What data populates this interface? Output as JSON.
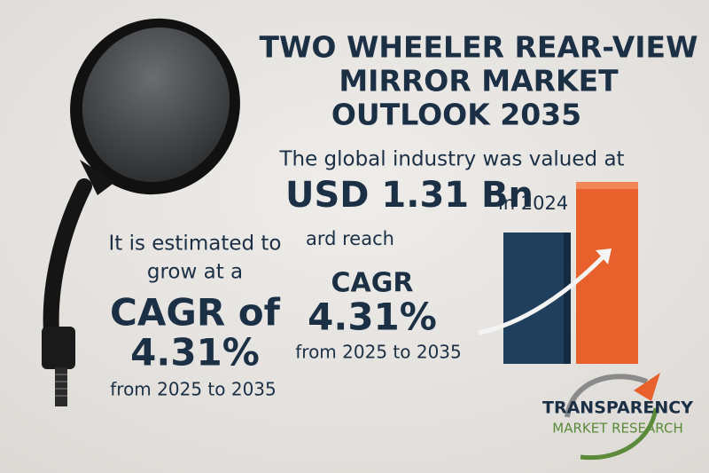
{
  "header": {
    "title_lines": [
      "TWO WHEELER REAR-VIEW",
      "MIRROR MARKET",
      "OUTLOOK 2035"
    ]
  },
  "valuation": {
    "intro": "The global industry was valued at",
    "value": "USD 1.31 Bn",
    "year": "in 2024",
    "reach": "ard reach"
  },
  "right_cagr": {
    "label": "CAGR",
    "value": "4.31%",
    "period": "from 2025 to 2035"
  },
  "left_cagr": {
    "line1": "It is estimated to",
    "line2": "grow at a",
    "label": "CAGR of",
    "value": "4.31%",
    "period": "from 2025 to 2035"
  },
  "logo": {
    "name": "TRANSPARENCY",
    "subtitle": "MARKET RESEARCH"
  }
}
